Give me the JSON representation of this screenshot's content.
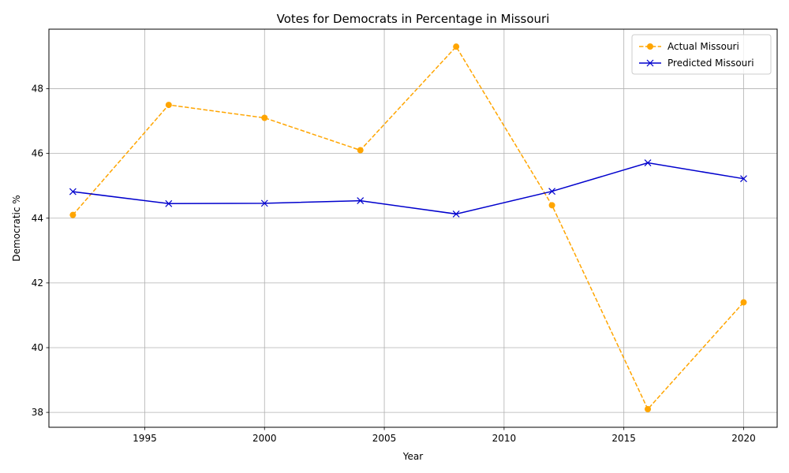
{
  "chart_data": {
    "type": "line",
    "title": "Votes for Democrats in Percentage in Missouri",
    "xlabel": "Year",
    "ylabel": "Democratic %",
    "x": [
      1992,
      1996,
      2000,
      2004,
      2008,
      2012,
      2016,
      2020
    ],
    "xlim": [
      1991.0,
      2021.4
    ],
    "ylim": [
      37.54,
      49.84
    ],
    "xticks": [
      1995,
      2000,
      2005,
      2010,
      2015,
      2020
    ],
    "yticks": [
      38,
      40,
      42,
      44,
      46,
      48
    ],
    "grid": true,
    "legend_position": "top-right",
    "series": [
      {
        "name": "Actual Missouri",
        "values": [
          44.1,
          47.5,
          47.1,
          46.1,
          49.3,
          44.4,
          38.1,
          41.4
        ],
        "color": "#ffa500",
        "line_style": "dashed",
        "marker": "circle"
      },
      {
        "name": "Predicted Missouri",
        "values": [
          44.82,
          44.45,
          44.46,
          44.54,
          44.13,
          44.83,
          45.71,
          45.22
        ],
        "color": "#0000cd",
        "line_style": "solid",
        "marker": "x"
      }
    ]
  }
}
